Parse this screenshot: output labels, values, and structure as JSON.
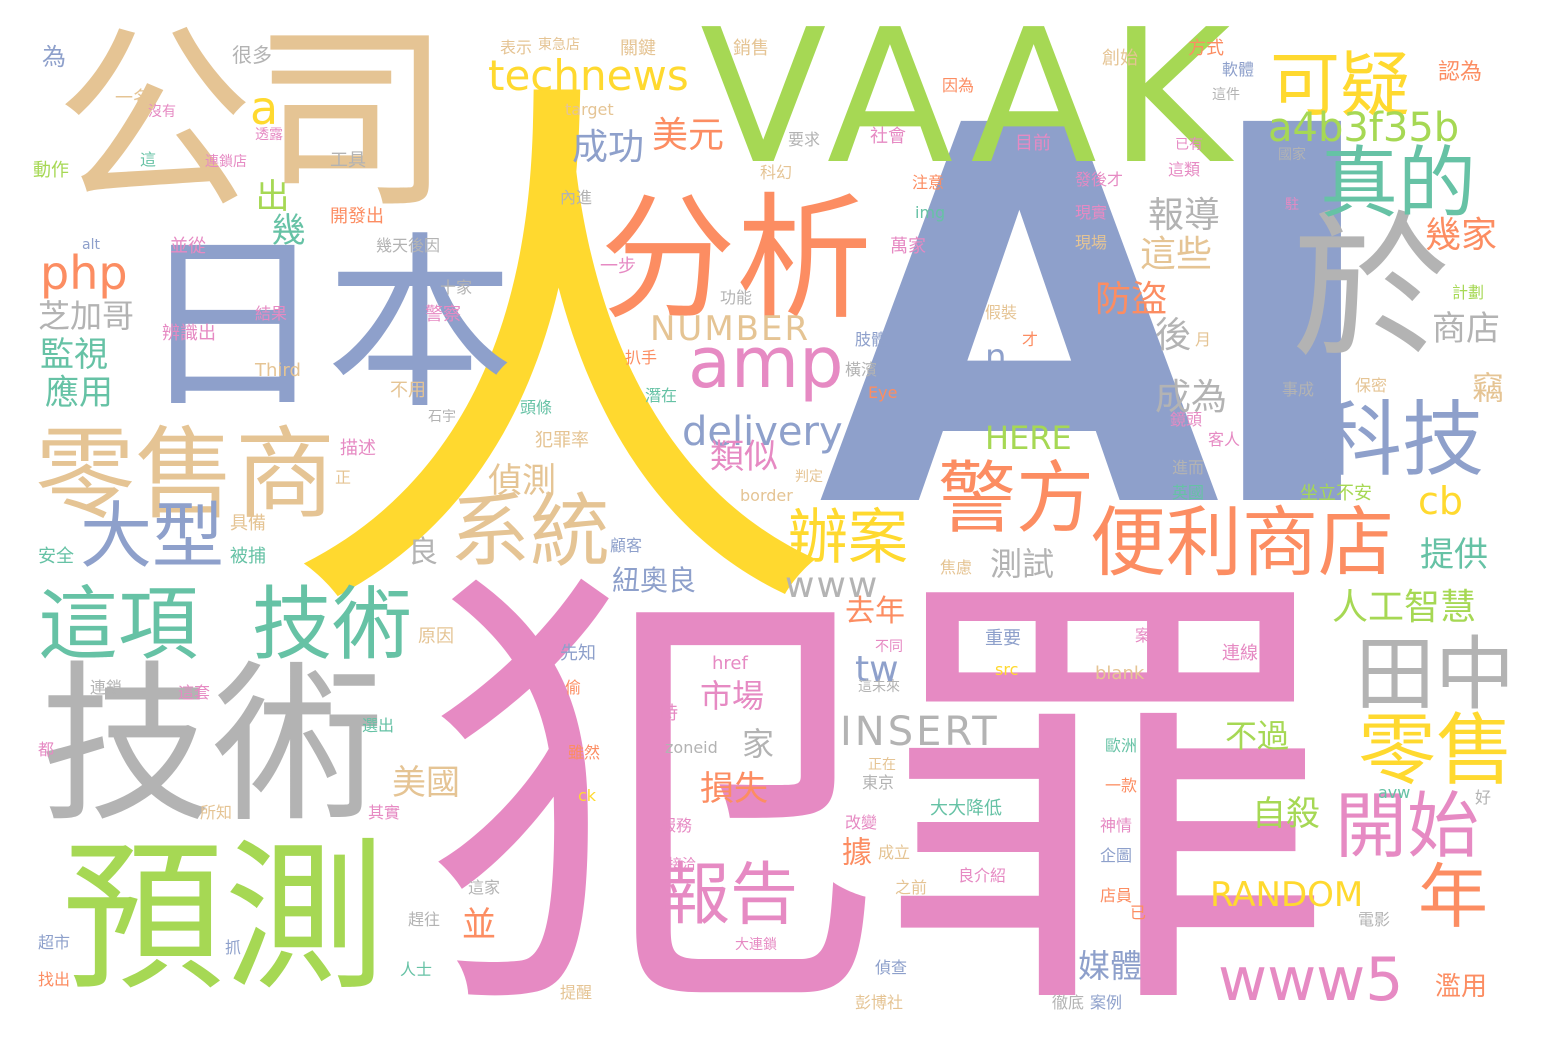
{
  "words": {
    "ai": "AI",
    "ren": "人",
    "fanzui": "犯罪",
    "vaak": "VAAK",
    "gongsi": "公司",
    "riben": "日本",
    "jishu": "技術",
    "yuce": "預測",
    "fenxi": "分析",
    "yu": "於",
    "lingshoushang": "零售商",
    "amp": "amp",
    "zhende": "真的",
    "keyi": "可疑",
    "keji": "科技",
    "jingfang": "警方",
    "bianlishangdian": "便利商店",
    "xitong": "系統",
    "daxing": "大型",
    "zhexiang": "這項",
    "jishu2": "技術",
    "tianzhong": "田中",
    "lingshou": "零售",
    "kaishi": "開始",
    "nian": "年",
    "baogao": "報告",
    "www5": "www5",
    "bianan": "辦案",
    "technews": "technews",
    "a4b3f35b": "a4b3f35b",
    "a": "a",
    "chenggong": "成功",
    "meiyuan": "美元",
    "php": "php",
    "chu": "出",
    "ji": "幾",
    "zhijiage": "芝加哥",
    "jianshi": "監視",
    "yingyong": "應用",
    "number": "NUMBER",
    "delivery": "delivery",
    "n": "n",
    "here": "HERE",
    "baodao": "報導",
    "zhexie": "這些",
    "fangdao": "防盜",
    "hou": "後",
    "chengwei": "成為",
    "jijia": "幾家",
    "shangdian": "商店",
    "qie": "竊",
    "cb": "cb",
    "tigong": "提供",
    "rengongzhihui": "人工智慧",
    "leisi": "類似",
    "zhence": "偵測",
    "liang": "良",
    "niuaoliang": "紐奧良",
    "www": "www",
    "ceshi": "測試",
    "qunian": "去年",
    "tw": "tw",
    "shichang": "市場",
    "insert": "INSERT",
    "jia": "家",
    "buguo": "不過",
    "meiguo": "美國",
    "sunshi": "損失",
    "zisha": "自殺",
    "ju": "據",
    "random": "RANDOM",
    "bing": "並",
    "meiti": "媒體",
    "lanyong": "濫用"
  },
  "small_words": [
    "為",
    "很多",
    "表示",
    "東急店",
    "關鍵",
    "銷售",
    "方式",
    "創始",
    "軟體",
    "認為",
    "一名",
    "沒有",
    "透露",
    "target",
    "這件",
    "因為",
    "要求",
    "社會",
    "已有",
    "國家",
    "動作",
    "這",
    "連鎖店",
    "工具",
    "科幻",
    "目前",
    "發後才",
    "這類",
    "內進",
    "注意",
    "img",
    "現實",
    "駐",
    "開發出",
    "alt",
    "並從",
    "幾天後因",
    "萬家",
    "現場",
    "十家",
    "一步",
    "功能",
    "計劃",
    "結果",
    "警察",
    "辨識出",
    "假裝",
    "肢體",
    "才",
    "月",
    "扒手",
    "Third",
    "不用",
    "橫濱",
    "潛在",
    "事成",
    "保密",
    "石宇",
    "頭條",
    "Eye",
    "描述",
    "犯罪率",
    "鏡頭",
    "客人",
    "正",
    "判定",
    "進而",
    "英國",
    "border",
    "具備",
    "坐立不安",
    "被捕",
    "顧客",
    "安全",
    "焦慮",
    "重要",
    "案",
    "不同",
    "連線",
    "原因",
    "先知",
    "href",
    "src",
    "blank",
    "連鎖",
    "這套",
    "偷",
    "這未來",
    "時",
    "選出",
    "歐洲",
    "zoneid",
    "都",
    "雖然",
    "正在",
    "東京",
    "ck",
    "avw",
    "好",
    "所知",
    "其實",
    "改變",
    "大大降低",
    "一款",
    "服務",
    "神情",
    "成立",
    "企圖",
    "接洽",
    "之前",
    "良介紹",
    "這家",
    "店員",
    "趕往",
    "已",
    "超市",
    "大連鎖",
    "電影",
    "抓",
    "人士",
    "偵查",
    "找出",
    "提醒",
    "徹底",
    "案例",
    "彭博社"
  ],
  "colors": {
    "pink": "#e68ac3",
    "blue": "#8ea0cb",
    "yellow": "#ffd92f",
    "green": "#a6d854",
    "orange": "#fc8d62",
    "tan": "#e5c494",
    "gray": "#b3b3b3",
    "teal": "#66c2a5",
    "background": "#ffffff"
  }
}
